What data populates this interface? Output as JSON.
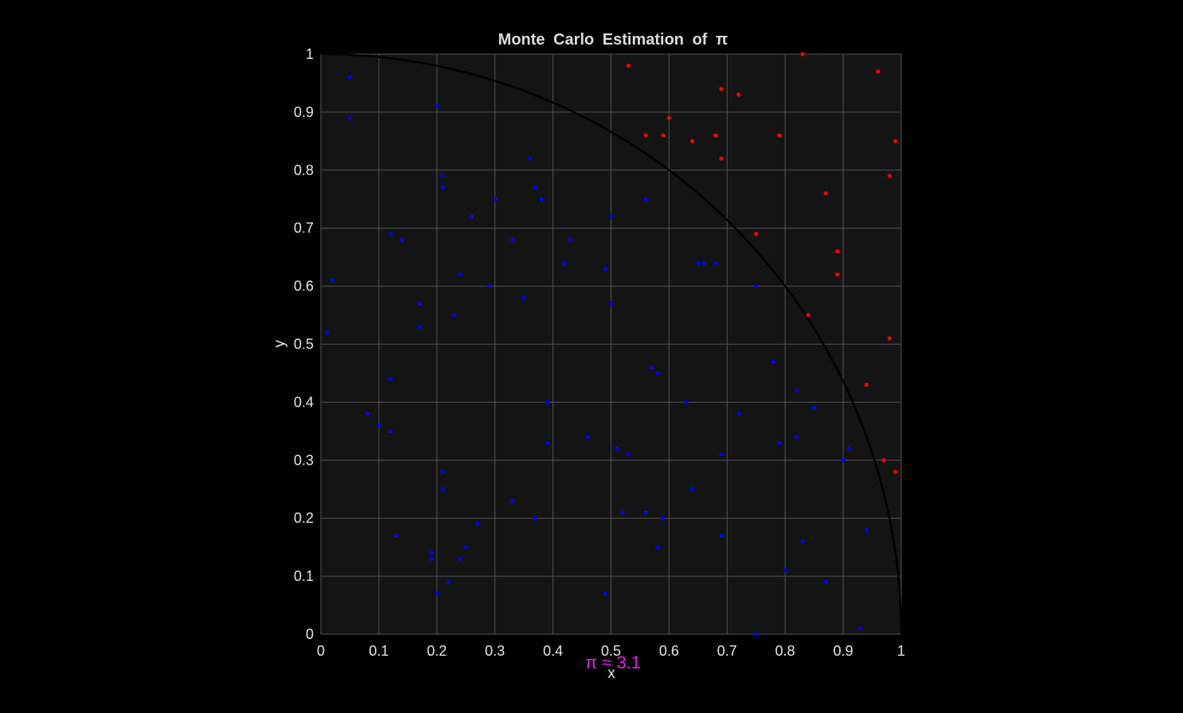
{
  "chart_data": {
    "type": "scatter",
    "title": "Monte Carlo Estimation of π",
    "xlabel": "x",
    "ylabel": "y",
    "xlim": [
      0,
      1
    ],
    "ylim": [
      0,
      1
    ],
    "xticks": [
      "0",
      "0.1",
      "0.2",
      "0.3",
      "0.4",
      "0.5",
      "0.6",
      "0.7",
      "0.8",
      "0.9",
      "1"
    ],
    "yticks": [
      "0",
      "0.1",
      "0.2",
      "0.3",
      "0.4",
      "0.5",
      "0.6",
      "0.7",
      "0.8",
      "0.9",
      "1"
    ],
    "grid": true,
    "annotation": "π ≈ 3.1",
    "colors": {
      "inside": "#0000ff",
      "outside": "#ff0000",
      "arc": "#000000",
      "axes_bg": "#141414",
      "grid": "#555555",
      "annotation": "#e21fe6"
    },
    "series": [
      {
        "points": [
          [
            0.05,
            0.96
          ],
          [
            0.05,
            0.89
          ],
          [
            0.02,
            0.61
          ],
          [
            0.01,
            0.52
          ],
          [
            0.08,
            0.38
          ],
          [
            0.1,
            0.36
          ],
          [
            0.12,
            0.35
          ],
          [
            0.12,
            0.44
          ],
          [
            0.12,
            0.69
          ],
          [
            0.14,
            0.68
          ],
          [
            0.13,
            0.17
          ],
          [
            0.17,
            0.57
          ],
          [
            0.17,
            0.53
          ],
          [
            0.19,
            0.14
          ],
          [
            0.19,
            0.13
          ],
          [
            0.2,
            0.07
          ],
          [
            0.2,
            0.91
          ],
          [
            0.21,
            0.79
          ],
          [
            0.21,
            0.77
          ],
          [
            0.21,
            0.28
          ],
          [
            0.21,
            0.25
          ],
          [
            0.22,
            0.09
          ],
          [
            0.23,
            0.55
          ],
          [
            0.24,
            0.13
          ],
          [
            0.24,
            0.62
          ],
          [
            0.25,
            0.15
          ],
          [
            0.26,
            0.72
          ],
          [
            0.27,
            0.19
          ],
          [
            0.29,
            0.6
          ],
          [
            0.3,
            0.75
          ],
          [
            0.33,
            0.68
          ],
          [
            0.33,
            0.23
          ],
          [
            0.35,
            0.58
          ],
          [
            0.36,
            0.82
          ],
          [
            0.37,
            0.77
          ],
          [
            0.37,
            0.2
          ],
          [
            0.38,
            0.75
          ],
          [
            0.39,
            0.4
          ],
          [
            0.39,
            0.33
          ],
          [
            0.42,
            0.64
          ],
          [
            0.42,
            0.64
          ],
          [
            0.43,
            0.68
          ],
          [
            0.46,
            0.34
          ],
          [
            0.49,
            0.63
          ],
          [
            0.49,
            0.07
          ],
          [
            0.5,
            0.72
          ],
          [
            0.5,
            0.57
          ],
          [
            0.51,
            0.32
          ],
          [
            0.52,
            0.21
          ],
          [
            0.53,
            0.31
          ],
          [
            0.56,
            0.75
          ],
          [
            0.56,
            0.21
          ],
          [
            0.57,
            0.46
          ],
          [
            0.58,
            0.45
          ],
          [
            0.58,
            0.15
          ],
          [
            0.59,
            0.2
          ],
          [
            0.63,
            0.4
          ],
          [
            0.64,
            0.25
          ],
          [
            0.65,
            0.64
          ],
          [
            0.66,
            0.64
          ],
          [
            0.68,
            0.64
          ],
          [
            0.69,
            0.17
          ],
          [
            0.69,
            0.31
          ],
          [
            0.72,
            0.38
          ],
          [
            0.75,
            0.6
          ],
          [
            0.75,
            0.0
          ],
          [
            0.78,
            0.47
          ],
          [
            0.79,
            0.33
          ],
          [
            0.8,
            0.11
          ],
          [
            0.82,
            0.42
          ],
          [
            0.82,
            0.34
          ],
          [
            0.83,
            0.16
          ],
          [
            0.85,
            0.39
          ],
          [
            0.87,
            0.09
          ],
          [
            0.9,
            0.3
          ],
          [
            0.91,
            0.32
          ],
          [
            0.93,
            0.01
          ],
          [
            0.94,
            0.18
          ]
        ]
      },
      {
        "points": [
          [
            0.53,
            0.98
          ],
          [
            0.56,
            0.86
          ],
          [
            0.59,
            0.86
          ],
          [
            0.6,
            0.89
          ],
          [
            0.64,
            0.85
          ],
          [
            0.68,
            0.86
          ],
          [
            0.69,
            0.94
          ],
          [
            0.69,
            0.82
          ],
          [
            0.72,
            0.93
          ],
          [
            0.75,
            0.69
          ],
          [
            0.79,
            0.86
          ],
          [
            0.83,
            1.0
          ],
          [
            0.84,
            0.55
          ],
          [
            0.87,
            0.76
          ],
          [
            0.89,
            0.66
          ],
          [
            0.89,
            0.62
          ],
          [
            0.94,
            0.43
          ],
          [
            0.96,
            0.97
          ],
          [
            0.97,
            0.3
          ],
          [
            0.98,
            0.79
          ],
          [
            0.98,
            0.51
          ],
          [
            0.99,
            0.85
          ],
          [
            0.99,
            0.28
          ]
        ]
      }
    ]
  }
}
